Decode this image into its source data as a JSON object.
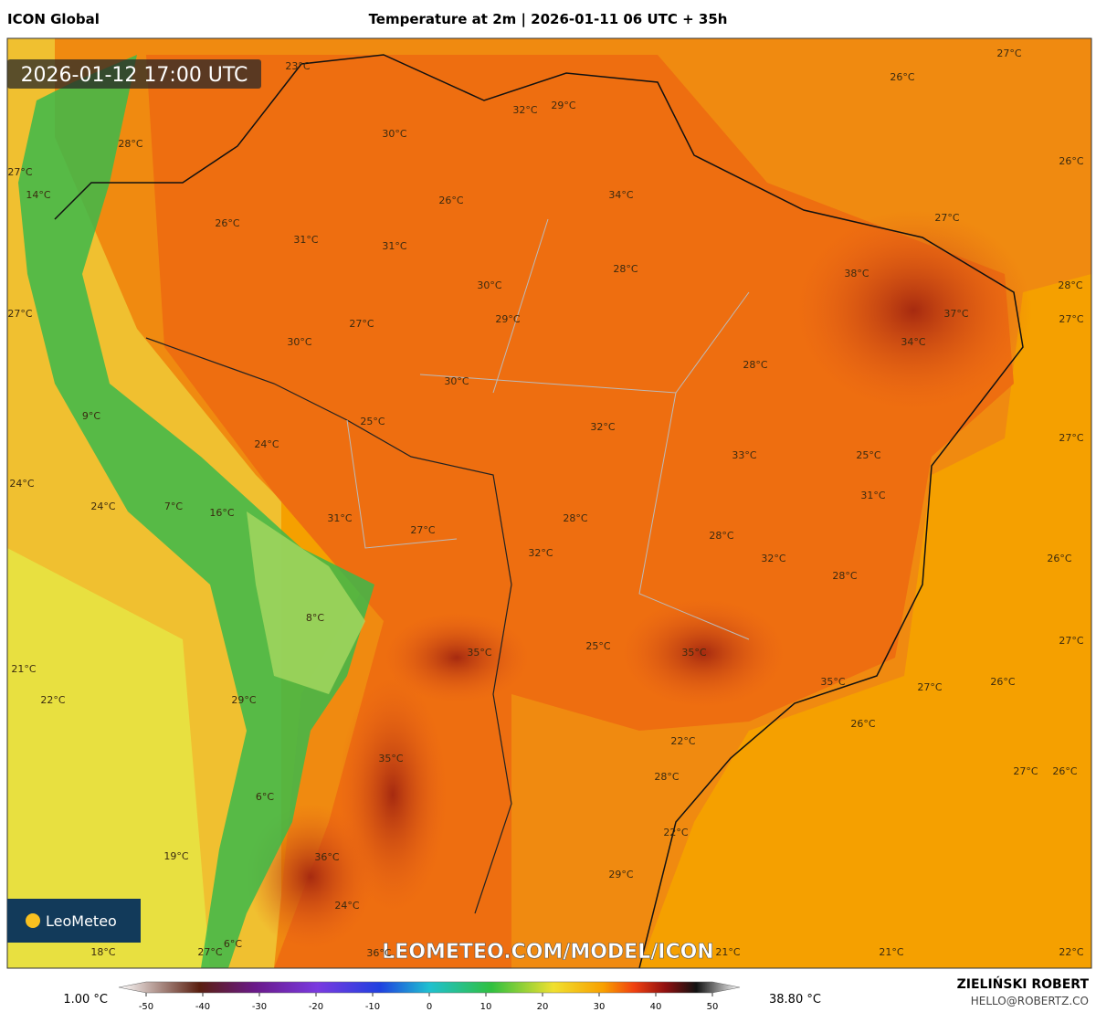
{
  "header": {
    "model": "ICON Global",
    "title": "Temperature at 2m | 2026-01-11 06 UTC + 35h"
  },
  "map": {
    "valid_time": "2026-01-12 17:00 UTC",
    "logo": "LeoMeteo",
    "watermark": "LEOMETEO.COM/MODEL/ICON",
    "labels": [
      "23°C",
      "27°C",
      "26°C",
      "32°C",
      "29°C",
      "30°C",
      "28°C",
      "27°C",
      "26°C",
      "14°C",
      "34°C",
      "26°C",
      "26°C",
      "27°C",
      "31°C",
      "31°C",
      "28°C",
      "38°C",
      "28°C",
      "30°C",
      "27°C",
      "37°C",
      "29°C",
      "27°C",
      "27°C",
      "30°C",
      "34°C",
      "28°C",
      "30°C",
      "9°C",
      "25°C",
      "32°C",
      "27°C",
      "24°C",
      "33°C",
      "25°C",
      "24°C",
      "31°C",
      "24°C",
      "7°C",
      "16°C",
      "31°C",
      "27°C",
      "28°C",
      "28°C",
      "32°C",
      "32°C",
      "26°C",
      "28°C",
      "8°C",
      "35°C",
      "25°C",
      "35°C",
      "27°C",
      "21°C",
      "35°C",
      "27°C",
      "26°C",
      "22°C",
      "29°C",
      "26°C",
      "22°C",
      "35°C",
      "27°C",
      "26°C",
      "28°C",
      "6°C",
      "22°C",
      "19°C",
      "36°C",
      "29°C",
      "24°C",
      "6°C",
      "18°C",
      "27°C",
      "36°C",
      "21°C",
      "21°C",
      "22°C"
    ]
  },
  "legend": {
    "min_label": "1.00 °C",
    "max_label": "38.80 °C",
    "ticks": [
      -50,
      -40,
      -30,
      -20,
      -10,
      0,
      10,
      20,
      30,
      40,
      50
    ]
  },
  "footer": {
    "author": "ZIELIŃSKI ROBERT",
    "contact": "HELLO@ROBERTZ.CO"
  }
}
